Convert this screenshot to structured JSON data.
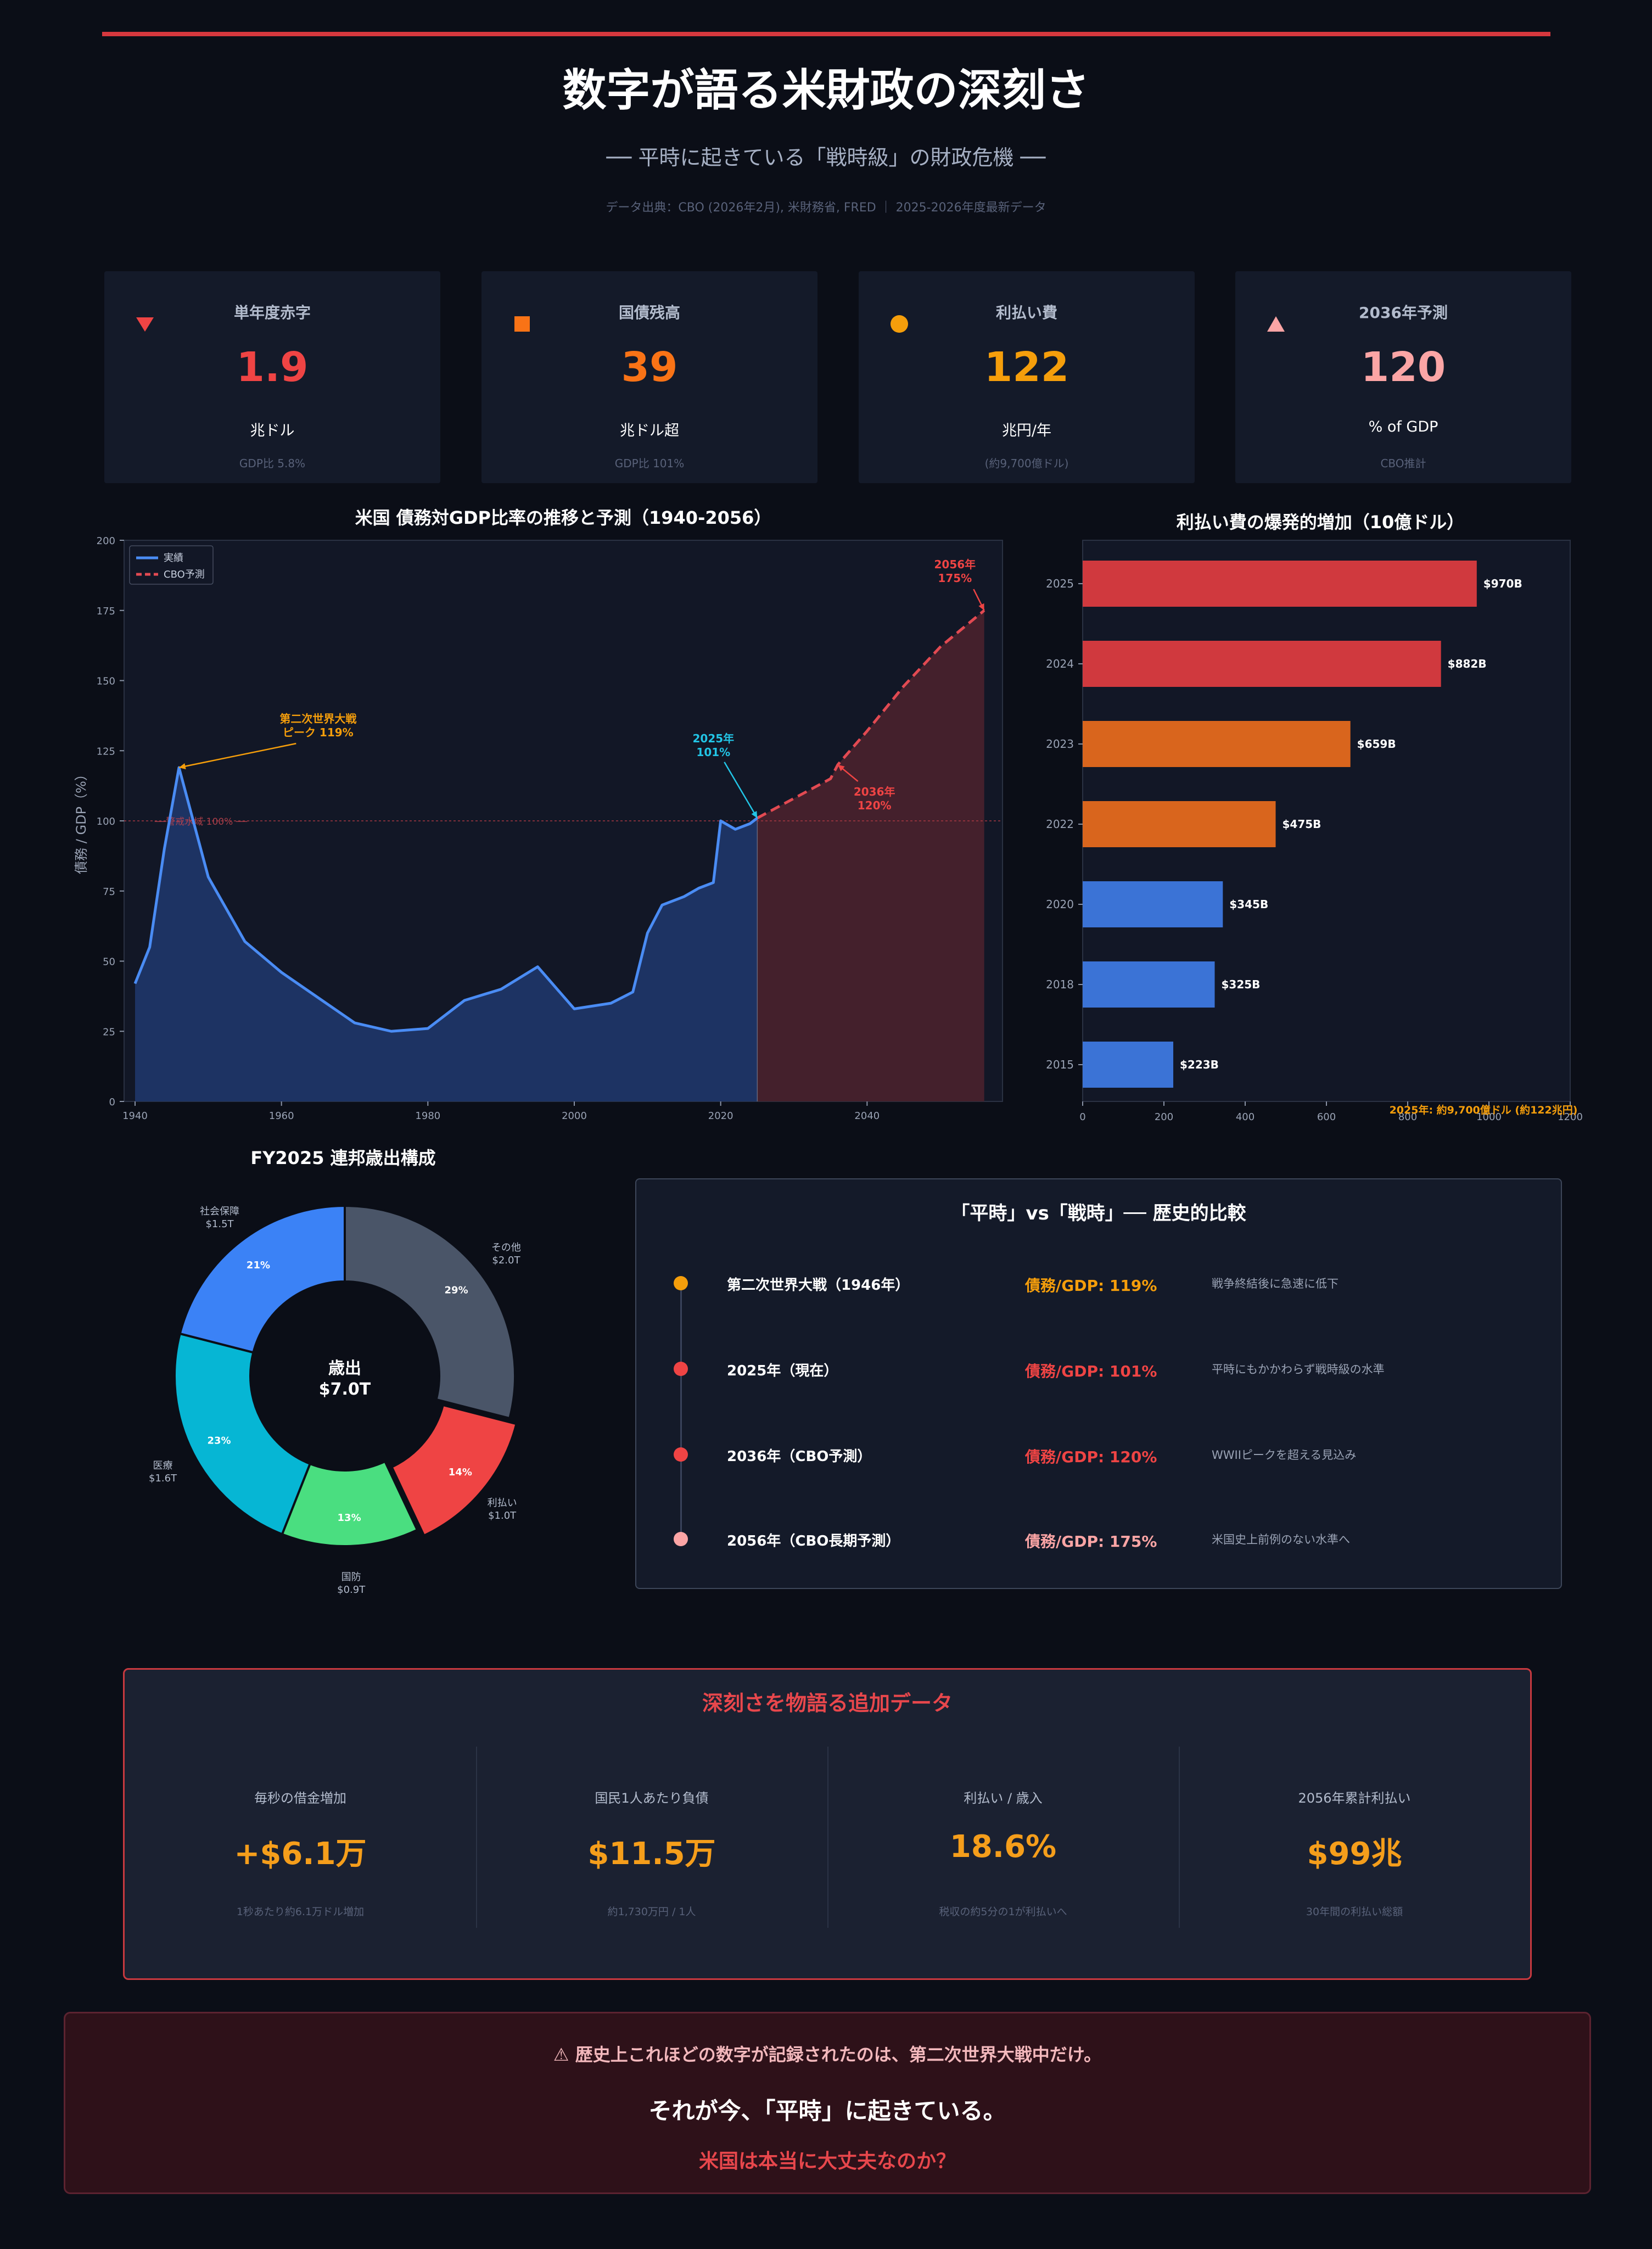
{
  "header": {
    "title": "数字が語る米財政の深刻さ",
    "subtitle": "── 平時に起きている「戦時級」の財政危機 ──",
    "source": "データ出典：CBO (2026年2月), 米財務省, FRED ｜ 2025-2026年度最新データ"
  },
  "kpis": [
    {
      "label": "単年度赤字",
      "value": "1.9",
      "unit": "兆ドル",
      "note": "GDP比 5.8%",
      "color": "#ef4444",
      "icon": "triangle-down-icon"
    },
    {
      "label": "国債残高",
      "value": "39",
      "unit": "兆ドル超",
      "note": "GDP比 101%",
      "color": "#f97316",
      "icon": "square-icon"
    },
    {
      "label": "利払い費",
      "value": "122",
      "unit": "兆円/年",
      "note": "(約9,700億ドル)",
      "color": "#f59e0b",
      "icon": "circle-icon"
    },
    {
      "label": "2036年予測",
      "value": "120",
      "unit": "% of GDP",
      "note": "CBO推計",
      "color": "#fca5a5",
      "icon": "triangle-up-icon"
    }
  ],
  "chart_data": [
    {
      "type": "area",
      "title": "米国 債務対GDP比率の推移と予測（1940-2056）",
      "ylabel": "債務 / GDP（%）",
      "xlabel": "",
      "xlim": [
        1938.5,
        2058.5
      ],
      "ylim": [
        0,
        200
      ],
      "xticks": [
        1940,
        1960,
        1980,
        2000,
        2020,
        2040
      ],
      "yticks": [
        0,
        25,
        50,
        75,
        100,
        125,
        150,
        175,
        200
      ],
      "legend": {
        "position": "top-left",
        "actual": "実績",
        "forecast": "CBO予測"
      },
      "series": [
        {
          "name": "実績",
          "x": [
            1940,
            1942,
            1944,
            1946,
            1950,
            1955,
            1960,
            1965,
            1970,
            1975,
            1980,
            1985,
            1990,
            1995,
            2000,
            2005,
            2008,
            2010,
            2012,
            2015,
            2017,
            2019,
            2020,
            2022,
            2024,
            2025
          ],
          "values": [
            42,
            55,
            90,
            119,
            80,
            57,
            46,
            37,
            28,
            25,
            26,
            36,
            40,
            48,
            33,
            35,
            39,
            60,
            70,
            73,
            76,
            78,
            100,
            97,
            99,
            101
          ]
        },
        {
          "name": "CBO予測",
          "x": [
            2025,
            2030,
            2035,
            2036,
            2040,
            2045,
            2050,
            2056
          ],
          "values": [
            101,
            108,
            115,
            120,
            132,
            148,
            162,
            175
          ]
        }
      ],
      "reference_line": {
        "y": 100,
        "label": "──警戒水域 100% ──"
      },
      "annotations": [
        {
          "text": "第二次世界大戦",
          "text2": "ピーク 119%",
          "x": 1946,
          "y": 119,
          "color": "#f59e0b"
        },
        {
          "text": "2025年",
          "text2": "101%",
          "x": 2025,
          "y": 101,
          "color": "#22c5e6"
        },
        {
          "text": "2036年",
          "text2": "120%",
          "x": 2036,
          "y": 120,
          "color": "#ef4444"
        },
        {
          "text": "2056年",
          "text2": "175%",
          "x": 2056,
          "y": 175,
          "color": "#ef4444"
        }
      ]
    },
    {
      "type": "bar",
      "orientation": "horizontal",
      "title": "利払い費の爆発的増加（10億ドル）",
      "categories": [
        "2025",
        "2024",
        "2023",
        "2022",
        "2020",
        "2018",
        "2015"
      ],
      "values": [
        970,
        882,
        659,
        475,
        345,
        325,
        223
      ],
      "value_labels": [
        "$970B",
        "$882B",
        "$659B",
        "$475B",
        "$345B",
        "$325B",
        "$223B"
      ],
      "colors": [
        "#d0393e",
        "#d0393e",
        "#d9651d",
        "#d9651d",
        "#3b73d6",
        "#3b73d6",
        "#3b73d6"
      ],
      "xlim": [
        0,
        1200
      ],
      "xticks": [
        0,
        200,
        400,
        600,
        800,
        1000,
        1200
      ],
      "annotation": "2025年: 約9,700億ドル (約122兆円)"
    },
    {
      "type": "pie",
      "title": "FY2025 連邦歳出構成",
      "center_label": "歳出",
      "center_value": "$7.0T",
      "slices": [
        {
          "label": "その他",
          "amount": "$2.0T",
          "pct": 29,
          "color": "#4a5568"
        },
        {
          "label": "利払い",
          "amount": "$1.0T",
          "pct": 14,
          "color": "#ef4444"
        },
        {
          "label": "国防",
          "amount": "$0.9T",
          "pct": 13,
          "color": "#4ade80"
        },
        {
          "label": "医療",
          "amount": "$1.6T",
          "pct": 23,
          "color": "#06b6d4"
        },
        {
          "label": "社会保障",
          "amount": "$1.5T",
          "pct": 21,
          "color": "#3b82f6"
        }
      ]
    }
  ],
  "compare": {
    "title": "「平時」vs「戦時」── 歴史的比較",
    "rows": [
      {
        "event": "第二次世界大戦（1946年）",
        "stat": "債務/GDP: 119%",
        "note": "戦争終結後に急速に低下",
        "color": "#f59e0b"
      },
      {
        "event": "2025年（現在）",
        "stat": "債務/GDP: 101%",
        "note": "平時にもかかわらず戦時級の水準",
        "color": "#ef4444"
      },
      {
        "event": "2036年（CBO予測）",
        "stat": "債務/GDP: 120%",
        "note": "WWIIピークを超える見込み",
        "color": "#ef4444"
      },
      {
        "event": "2056年（CBO長期予測）",
        "stat": "債務/GDP: 175%",
        "note": "米国史上前例のない水準へ",
        "color": "#fca5a5"
      }
    ]
  },
  "extra": {
    "title": "深刻さを物語る追加データ",
    "items": [
      {
        "label": "毎秒の借金増加",
        "value": "+$6.1万",
        "note": "1秒あたり約6.1万ドル増加"
      },
      {
        "label": "国民1人あたり負債",
        "value": "$11.5万",
        "note": "約1,730万円 / 1人"
      },
      {
        "label": "利払い / 歳入",
        "value": "18.6%",
        "note": "税収の約5分の1が利払いへ"
      },
      {
        "label": "2056年累計利払い",
        "value": "$99兆",
        "note": "30年間の利払い総額"
      }
    ]
  },
  "conclusion": {
    "line1": "⚠ 歴史上これほどの数字が記録されたのは、第二次世界大戦中だけ。",
    "line2": "それが今、「平時」に起きている。",
    "line3": "米国は本当に大丈夫なのか？"
  }
}
